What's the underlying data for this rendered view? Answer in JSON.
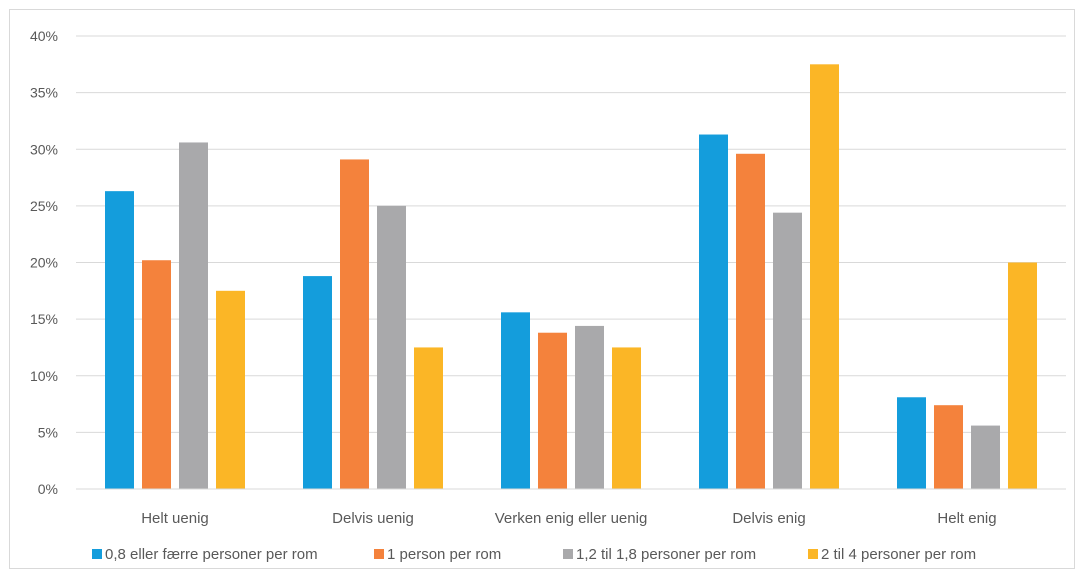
{
  "chart_data": {
    "type": "bar",
    "title": "",
    "xlabel": "",
    "ylabel": "",
    "ylim": [
      0,
      40
    ],
    "yticks": [
      "0%",
      "5%",
      "10%",
      "15%",
      "20%",
      "25%",
      "30%",
      "35%",
      "40%"
    ],
    "y_tick_values": [
      0,
      5,
      10,
      15,
      20,
      25,
      30,
      35,
      40
    ],
    "grid": true,
    "legend_position": "bottom",
    "categories": [
      "Helt uenig",
      "Delvis uenig",
      "Verken enig eller uenig",
      "Delvis enig",
      "Helt enig"
    ],
    "series": [
      {
        "name": "0,8 eller færre personer per rom",
        "color": "#149ddc",
        "values": [
          26.3,
          18.8,
          15.6,
          31.3,
          8.1
        ]
      },
      {
        "name": "1 person per rom",
        "color": "#f4823c",
        "values": [
          20.2,
          29.1,
          13.8,
          29.6,
          7.4
        ]
      },
      {
        "name": "1,2 til 1,8 personer per rom",
        "color": "#a9a9ab",
        "values": [
          30.6,
          25.0,
          14.4,
          24.4,
          5.6
        ]
      },
      {
        "name": "2 til 4 personer per rom",
        "color": "#fbb626",
        "values": [
          17.5,
          12.5,
          12.5,
          37.5,
          20.0
        ]
      }
    ]
  }
}
